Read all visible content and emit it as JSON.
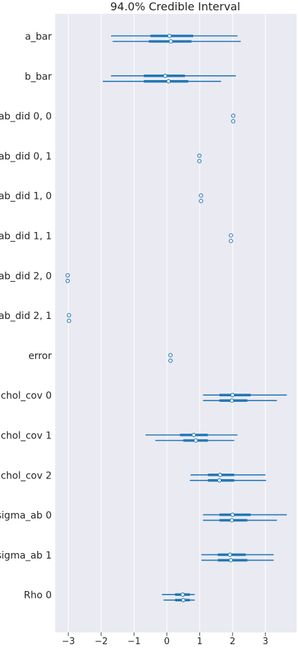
{
  "chart_data": {
    "type": "forest",
    "title": "94.0% Credible Interval",
    "xlabel": "",
    "ylabel": "",
    "xlim": [
      -3.4,
      3.95
    ],
    "x_ticks": [
      -3,
      -2,
      -1,
      0,
      1,
      2,
      3
    ],
    "x_tick_labels": [
      "−3",
      "−2",
      "−1",
      "0",
      "1",
      "2",
      "3"
    ],
    "grid": true,
    "legend": "none",
    "colors": {
      "background": "#eaeaf2",
      "series": "#1f77b4",
      "grid": "#ffffff",
      "text": "#262626"
    },
    "variables": [
      {
        "label": "a_bar",
        "chains": [
          {
            "hdi": [
              -1.7,
              2.15
            ],
            "iqr": [
              -0.5,
              0.8
            ],
            "median": 0.08
          },
          {
            "hdi": [
              -1.65,
              2.25
            ],
            "iqr": [
              -0.55,
              0.75
            ],
            "median": 0.12
          }
        ]
      },
      {
        "label": "b_bar",
        "chains": [
          {
            "hdi": [
              -1.7,
              2.1
            ],
            "iqr": [
              -0.7,
              0.55
            ],
            "median": -0.05
          },
          {
            "hdi": [
              -1.95,
              1.65
            ],
            "iqr": [
              -0.7,
              0.65
            ],
            "median": 0.05
          }
        ]
      },
      {
        "label": "ab_did 0, 0",
        "chains": [
          {
            "hdi": [
              2.02,
              2.02
            ],
            "iqr": [
              2.02,
              2.02
            ],
            "median": 2.02
          },
          {
            "hdi": [
              2.02,
              2.02
            ],
            "iqr": [
              2.02,
              2.02
            ],
            "median": 2.02
          }
        ]
      },
      {
        "label": "ab_did 0, 1",
        "chains": [
          {
            "hdi": [
              0.99,
              0.99
            ],
            "iqr": [
              0.99,
              0.99
            ],
            "median": 0.99
          },
          {
            "hdi": [
              0.99,
              0.99
            ],
            "iqr": [
              0.99,
              0.99
            ],
            "median": 0.99
          }
        ]
      },
      {
        "label": "ab_did 1, 0",
        "chains": [
          {
            "hdi": [
              1.04,
              1.04
            ],
            "iqr": [
              1.04,
              1.04
            ],
            "median": 1.04
          },
          {
            "hdi": [
              1.04,
              1.04
            ],
            "iqr": [
              1.04,
              1.04
            ],
            "median": 1.04
          }
        ]
      },
      {
        "label": "ab_did 1, 1",
        "chains": [
          {
            "hdi": [
              1.95,
              1.95
            ],
            "iqr": [
              1.95,
              1.95
            ],
            "median": 1.95
          },
          {
            "hdi": [
              1.95,
              1.95
            ],
            "iqr": [
              1.95,
              1.95
            ],
            "median": 1.95
          }
        ]
      },
      {
        "label": "ab_did 2, 0",
        "chains": [
          {
            "hdi": [
              -3.02,
              -3.02
            ],
            "iqr": [
              -3.02,
              -3.02
            ],
            "median": -3.02
          },
          {
            "hdi": [
              -3.02,
              -3.02
            ],
            "iqr": [
              -3.02,
              -3.02
            ],
            "median": -3.02
          }
        ]
      },
      {
        "label": "ab_did 2, 1",
        "chains": [
          {
            "hdi": [
              -2.98,
              -2.98
            ],
            "iqr": [
              -2.98,
              -2.98
            ],
            "median": -2.98
          },
          {
            "hdi": [
              -2.98,
              -2.98
            ],
            "iqr": [
              -2.98,
              -2.98
            ],
            "median": -2.98
          }
        ]
      },
      {
        "label": "error",
        "chains": [
          {
            "hdi": [
              0.11,
              0.11
            ],
            "iqr": [
              0.11,
              0.11
            ],
            "median": 0.11
          },
          {
            "hdi": [
              0.11,
              0.11
            ],
            "iqr": [
              0.11,
              0.11
            ],
            "median": 0.11
          }
        ]
      },
      {
        "label": "chol_cov 0",
        "chains": [
          {
            "hdi": [
              1.1,
              3.65
            ],
            "iqr": [
              1.6,
              2.55
            ],
            "median": 2.0
          },
          {
            "hdi": [
              1.1,
              3.35
            ],
            "iqr": [
              1.6,
              2.45
            ],
            "median": 1.98
          }
        ]
      },
      {
        "label": "chol_cov 1",
        "chains": [
          {
            "hdi": [
              -0.65,
              2.15
            ],
            "iqr": [
              0.4,
              1.25
            ],
            "median": 0.82
          },
          {
            "hdi": [
              -0.35,
              2.05
            ],
            "iqr": [
              0.5,
              1.25
            ],
            "median": 0.88
          }
        ]
      },
      {
        "label": "chol_cov 2",
        "chains": [
          {
            "hdi": [
              0.72,
              3.0
            ],
            "iqr": [
              1.25,
              2.05
            ],
            "median": 1.62
          },
          {
            "hdi": [
              0.7,
              3.02
            ],
            "iqr": [
              1.25,
              2.05
            ],
            "median": 1.6
          }
        ]
      },
      {
        "label": "sigma_ab 0",
        "chains": [
          {
            "hdi": [
              1.1,
              3.65
            ],
            "iqr": [
              1.6,
              2.55
            ],
            "median": 2.0
          },
          {
            "hdi": [
              1.1,
              3.35
            ],
            "iqr": [
              1.6,
              2.45
            ],
            "median": 1.98
          }
        ]
      },
      {
        "label": "sigma_ab 1",
        "chains": [
          {
            "hdi": [
              1.05,
              3.25
            ],
            "iqr": [
              1.55,
              2.4
            ],
            "median": 1.92
          },
          {
            "hdi": [
              1.05,
              3.25
            ],
            "iqr": [
              1.55,
              2.45
            ],
            "median": 1.95
          }
        ]
      },
      {
        "label": "Rho 0",
        "chains": [
          {
            "hdi": [
              -0.15,
              0.85
            ],
            "iqr": [
              0.25,
              0.7
            ],
            "median": 0.48
          },
          {
            "hdi": [
              -0.1,
              0.85
            ],
            "iqr": [
              0.25,
              0.7
            ],
            "median": 0.5
          }
        ]
      }
    ]
  }
}
